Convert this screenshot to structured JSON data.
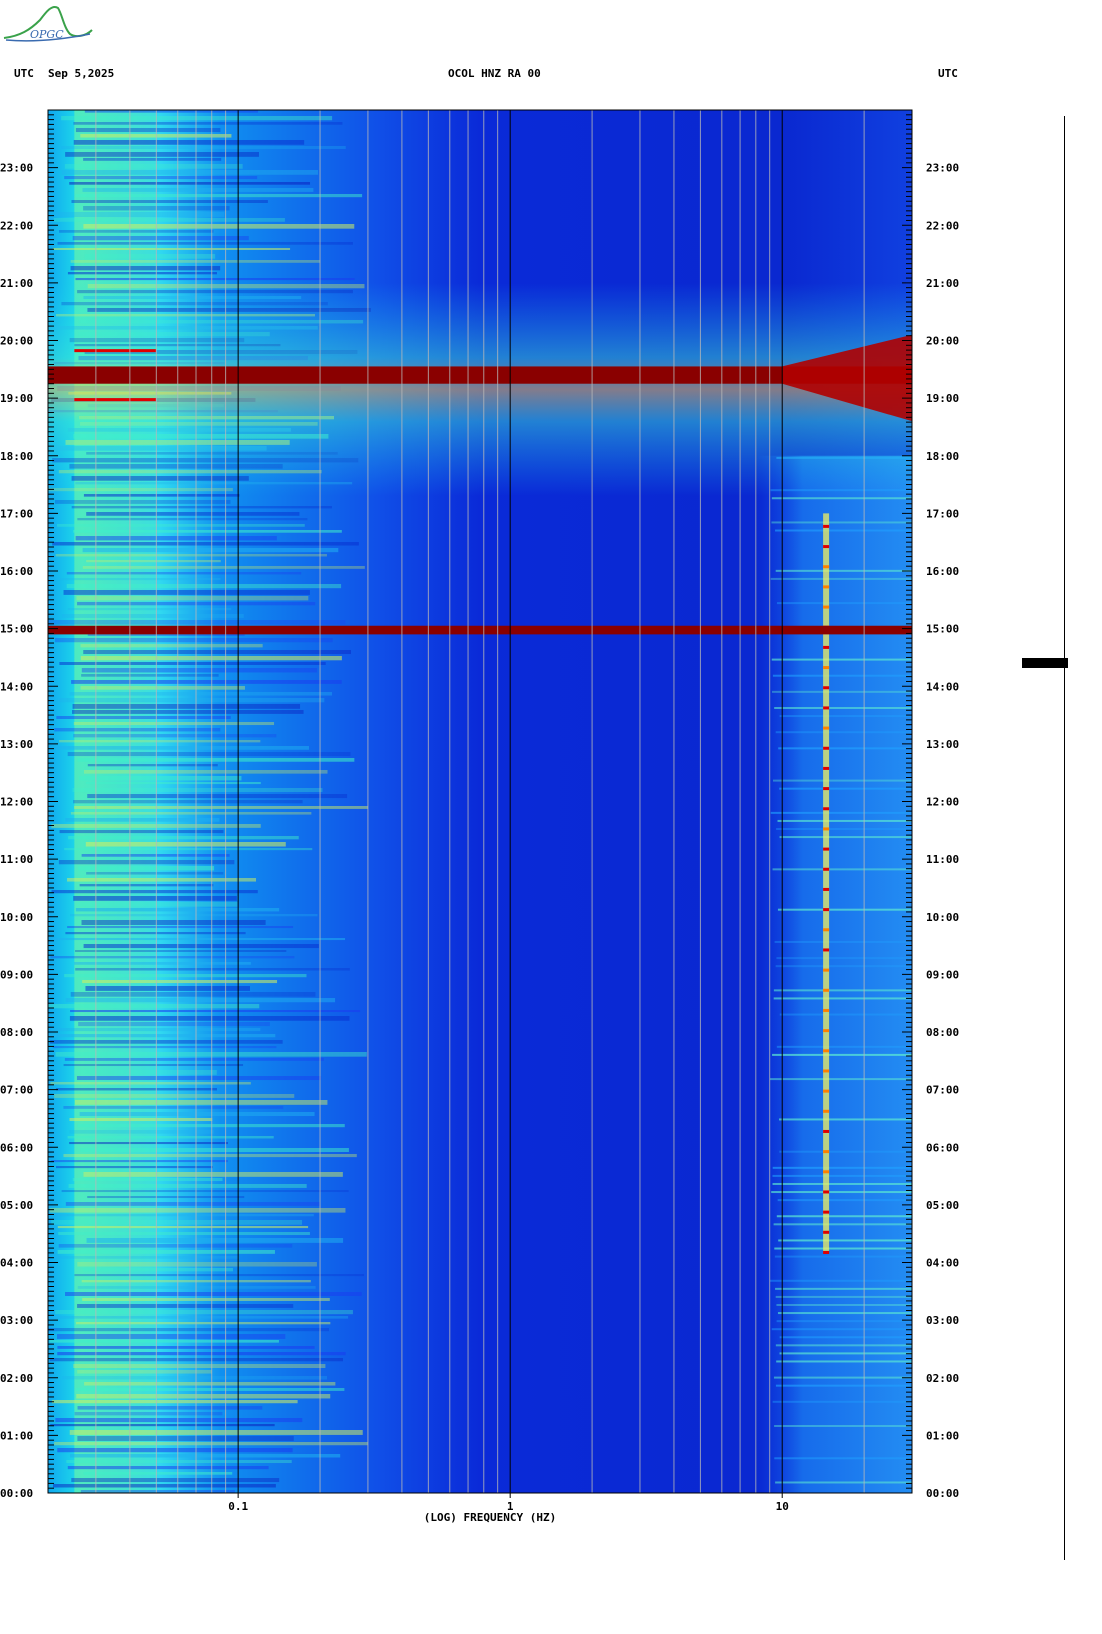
{
  "header": {
    "left_label": "UTC",
    "date": "Sep 5,2025",
    "station": "OCOL HNZ RA 00",
    "right_label": "UTC"
  },
  "logo": {
    "text": "OPGC"
  },
  "chart_data": {
    "type": "heatmap",
    "title": "OCOL HNZ RA 00",
    "xlabel": "(LOG) FREQUENCY (HZ)",
    "x_scale": "log",
    "xlim": [
      0.02,
      30
    ],
    "x_ticks": [
      0.1,
      1,
      10
    ],
    "x_tick_labels": [
      "0.1",
      "1",
      "10"
    ],
    "ylim_hours": [
      0,
      24
    ],
    "y_tick_labels": [
      "00:00",
      "01:00",
      "02:00",
      "03:00",
      "04:00",
      "05:00",
      "06:00",
      "07:00",
      "08:00",
      "09:00",
      "10:00",
      "11:00",
      "12:00",
      "13:00",
      "14:00",
      "15:00",
      "16:00",
      "17:00",
      "18:00",
      "19:00",
      "20:00",
      "21:00",
      "22:00",
      "23:00"
    ],
    "features": [
      {
        "kind": "broadband_event",
        "start_hour": 19.25,
        "end_hour": 19.55,
        "level": "saturated"
      },
      {
        "kind": "broadband_band",
        "start_hour": 14.9,
        "end_hour": 15.05,
        "level": "saturated"
      },
      {
        "kind": "tonal_line",
        "frequency_hz": 14.5,
        "start_hour": 4.2,
        "end_hour": 17.0
      },
      {
        "kind": "microseism_band",
        "f_low_hz": 0.025,
        "f_high_hz": 0.05
      }
    ],
    "colormap": [
      "#0010a0",
      "#0030e0",
      "#1070ff",
      "#10c8f0",
      "#60f0b0",
      "#f0f040",
      "#ff8000",
      "#e00000",
      "#8a0000"
    ]
  }
}
